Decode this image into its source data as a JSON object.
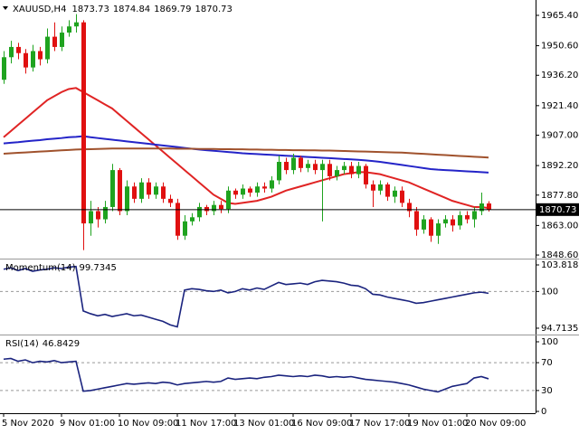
{
  "chart_data": [
    {
      "type": "candlestick",
      "title": "XAUUSD,H4",
      "open": [
        1934,
        1945,
        1950,
        1947,
        1940,
        1948,
        1944,
        1955,
        1950,
        1957,
        1960,
        1962,
        1864,
        1870,
        1866,
        1872,
        1890,
        1870,
        1882,
        1876,
        1884,
        1878,
        1882,
        1876,
        1874,
        1858,
        1865,
        1867,
        1872,
        1870,
        1873,
        1871,
        1880,
        1878,
        1881,
        1879,
        1882,
        1881,
        1885,
        1894,
        1890,
        1896,
        1891,
        1893,
        1890,
        1893,
        1887,
        1890,
        1892,
        1888,
        1892,
        1883,
        1880,
        1883,
        1877,
        1880,
        1874,
        1870,
        1861,
        1866,
        1858,
        1864,
        1866,
        1863,
        1868,
        1866,
        1870,
        1873.73
      ],
      "high": [
        1948,
        1953,
        1952,
        1949,
        1951,
        1950,
        1959,
        1962,
        1960,
        1963,
        1966,
        1963,
        1875,
        1872,
        1875,
        1893,
        1891,
        1885,
        1884,
        1886,
        1886,
        1884,
        1884,
        1878,
        1876,
        1868,
        1869,
        1874,
        1873,
        1875,
        1875,
        1882,
        1881,
        1883,
        1882,
        1884,
        1884,
        1887,
        1897,
        1896,
        1898,
        1897,
        1895,
        1895,
        1895,
        1895,
        1892,
        1894,
        1894,
        1894,
        1893,
        1885,
        1885,
        1884,
        1882,
        1882,
        1876,
        1872,
        1868,
        1867,
        1866,
        1868,
        1868,
        1870,
        1870,
        1872,
        1879,
        1874.84
      ],
      "low": [
        1932,
        1942,
        1944,
        1937,
        1938,
        1941,
        1942,
        1948,
        1948,
        1955,
        1957,
        1851,
        1858,
        1862,
        1864,
        1870,
        1868,
        1868,
        1874,
        1874,
        1876,
        1876,
        1874,
        1872,
        1856,
        1856,
        1863,
        1865,
        1868,
        1868,
        1869,
        1869,
        1876,
        1876,
        1877,
        1877,
        1879,
        1879,
        1883,
        1888,
        1888,
        1889,
        1889,
        1888,
        1865,
        1885,
        1885,
        1888,
        1886,
        1886,
        1881,
        1872,
        1878,
        1875,
        1874,
        1872,
        1867,
        1858,
        1859,
        1855,
        1854,
        1862,
        1860,
        1861,
        1864,
        1862,
        1868,
        1869.79
      ],
      "close": [
        1945,
        1950,
        1947,
        1940,
        1948,
        1944,
        1955,
        1950,
        1957,
        1960,
        1962,
        1864,
        1870,
        1866,
        1872,
        1890,
        1870,
        1882,
        1876,
        1884,
        1878,
        1882,
        1876,
        1874,
        1858,
        1865,
        1867,
        1872,
        1870,
        1873,
        1871,
        1880,
        1878,
        1881,
        1879,
        1882,
        1881,
        1885,
        1894,
        1890,
        1896,
        1891,
        1893,
        1890,
        1893,
        1887,
        1890,
        1892,
        1888,
        1892,
        1883,
        1880,
        1883,
        1877,
        1880,
        1874,
        1870,
        1861,
        1866,
        1858,
        1864,
        1866,
        1863,
        1868,
        1866,
        1870,
        1873.73,
        1870.73
      ],
      "up_color": "#1fa31f",
      "down_color": "#e01010",
      "series": [
        {
          "color": "#e02424",
          "values": [
            1906,
            1909,
            1912,
            1915,
            1918,
            1921,
            1924,
            1926,
            1928,
            1929.5,
            1930,
            1928,
            1926,
            1924,
            1922,
            1920,
            1917,
            1914,
            1911,
            1908,
            1905,
            1902,
            1899,
            1896,
            1893,
            1890,
            1887,
            1884,
            1881,
            1878,
            1876,
            1874,
            1873.5,
            1874,
            1874.5,
            1875,
            1876,
            1877,
            1878.5,
            1880,
            1881,
            1882,
            1883,
            1884,
            1885,
            1886,
            1887,
            1888,
            1888.5,
            1889,
            1889,
            1888.5,
            1888,
            1887,
            1886,
            1885,
            1884,
            1882.5,
            1881,
            1879.5,
            1878,
            1876.5,
            1875,
            1874,
            1873,
            1872,
            1872,
            1871.5
          ]
        },
        {
          "color": "#2424c8",
          "values": [
            1903,
            1903.3,
            1903.6,
            1904,
            1904.3,
            1904.6,
            1905,
            1905.3,
            1905.6,
            1906,
            1906.2,
            1906.5,
            1906,
            1905.6,
            1905.2,
            1904.8,
            1904.4,
            1904,
            1903.6,
            1903.2,
            1902.8,
            1902.4,
            1902,
            1901.6,
            1901.2,
            1900.8,
            1900.4,
            1900,
            1899.7,
            1899.4,
            1899.1,
            1898.8,
            1898.5,
            1898.2,
            1898,
            1897.8,
            1897.6,
            1897.4,
            1897.2,
            1897,
            1896.8,
            1896.6,
            1896.4,
            1896.2,
            1896,
            1895.8,
            1895.6,
            1895.4,
            1895.2,
            1895,
            1894.7,
            1894.4,
            1894,
            1893.5,
            1893,
            1892.5,
            1892,
            1891.5,
            1891,
            1890.5,
            1890.2,
            1890,
            1889.8,
            1889.6,
            1889.4,
            1889.2,
            1889,
            1888.8
          ]
        },
        {
          "color": "#a0522d",
          "values": [
            1898,
            1898.2,
            1898.4,
            1898.6,
            1898.8,
            1899,
            1899.2,
            1899.4,
            1899.6,
            1899.8,
            1900,
            1900.1,
            1900.2,
            1900.3,
            1900.4,
            1900.5,
            1900.5,
            1900.5,
            1900.5,
            1900.5,
            1900.5,
            1900.5,
            1900.5,
            1900.5,
            1900.4,
            1900.4,
            1900.4,
            1900.3,
            1900.3,
            1900.3,
            1900.2,
            1900.2,
            1900.1,
            1900.1,
            1900,
            1900,
            1899.9,
            1899.9,
            1899.8,
            1899.8,
            1899.7,
            1899.7,
            1899.6,
            1899.6,
            1899.5,
            1899.5,
            1899.4,
            1899.3,
            1899.2,
            1899.1,
            1899,
            1898.9,
            1898.8,
            1898.7,
            1898.6,
            1898.5,
            1898.3,
            1898.1,
            1897.9,
            1897.7,
            1897.5,
            1897.3,
            1897.1,
            1896.9,
            1896.7,
            1896.5,
            1896.3,
            1896.1
          ]
        }
      ],
      "ylim": [
        1847.3,
        1972.0
      ],
      "yticks": [
        {
          "value": 1965.4,
          "label": "1965.40"
        },
        {
          "value": 1950.6,
          "label": "1950.60"
        },
        {
          "value": 1936.2,
          "label": "1936.20"
        },
        {
          "value": 1921.4,
          "label": "1921.40"
        },
        {
          "value": 1907,
          "label": "1907.00"
        },
        {
          "value": 1892.2,
          "label": "1892.20"
        },
        {
          "value": 1877.8,
          "label": "1877.80"
        },
        {
          "value": 1863,
          "label": "1863.00"
        },
        {
          "value": 1848.6,
          "label": "1848.60"
        }
      ]
    },
    {
      "type": "line",
      "title": "Momentum(14)",
      "color": "#1a237e",
      "values": [
        103.2,
        103.4,
        103.0,
        103.3,
        102.9,
        103.1,
        103.2,
        103.4,
        103.3,
        103.5,
        103.6,
        97.2,
        96.8,
        96.5,
        96.7,
        96.4,
        96.6,
        96.8,
        96.5,
        96.6,
        96.3,
        96.0,
        95.7,
        95.2,
        94.9,
        100.2,
        100.4,
        100.3,
        100.1,
        100.0,
        100.2,
        99.8,
        100.0,
        100.4,
        100.2,
        100.5,
        100.3,
        100.8,
        101.3,
        101.0,
        101.1,
        101.2,
        101.0,
        101.4,
        101.6,
        101.5,
        101.4,
        101.2,
        100.9,
        100.8,
        100.4,
        99.6,
        99.5,
        99.2,
        99.0,
        98.8,
        98.6,
        98.3,
        98.4,
        98.6,
        98.8,
        99.0,
        99.2,
        99.4,
        99.6,
        99.8,
        99.9,
        99.7345
      ],
      "ylim": [
        94.06,
        104.47
      ],
      "yticks": [
        103.8183,
        100,
        94.7135
      ],
      "levels": [
        100
      ]
    },
    {
      "type": "line",
      "title": "RSI(14)",
      "color": "#1a237e",
      "values": [
        75,
        76,
        72,
        74,
        70,
        72,
        71,
        73,
        70,
        71,
        72,
        29,
        30,
        32,
        34,
        36,
        38,
        40,
        39,
        40,
        41,
        40,
        42,
        41,
        38,
        40,
        41,
        42,
        43,
        42,
        43,
        48,
        46,
        47,
        48,
        47,
        49,
        50,
        52,
        51,
        50,
        51,
        50,
        52,
        51,
        49,
        50,
        49,
        50,
        48,
        46,
        45,
        44,
        43,
        42,
        40,
        38,
        35,
        32,
        30,
        28,
        32,
        36,
        38,
        40,
        48,
        50,
        46.8429
      ],
      "ylim": [
        -2.6,
        107.8
      ],
      "yticks": [
        100,
        70,
        30,
        0
      ],
      "levels": [
        70,
        30
      ],
      "categories": [
        "5 Nov 2020",
        null,
        null,
        null,
        null,
        null,
        null,
        null,
        "9 Nov 01:00",
        null,
        null,
        null,
        null,
        null,
        null,
        null,
        "10 Nov 09:00",
        null,
        null,
        null,
        null,
        null,
        null,
        null,
        "11 Nov 17:00",
        null,
        null,
        null,
        null,
        null,
        null,
        null,
        "13 Nov 01:00",
        null,
        null,
        null,
        null,
        null,
        null,
        null,
        "16 Nov 09:00",
        null,
        null,
        null,
        null,
        null,
        null,
        null,
        "17 Nov 17:00",
        null,
        null,
        null,
        null,
        null,
        null,
        null,
        "19 Nov 01:00",
        null,
        null,
        null,
        null,
        null,
        null,
        null,
        "20 Nov 09:00",
        null,
        null,
        null
      ]
    }
  ]
}
